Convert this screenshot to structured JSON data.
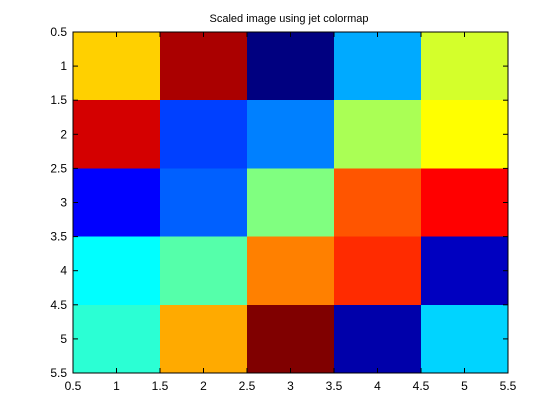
{
  "chart_data": {
    "type": "heatmap",
    "title": "Scaled image using jet colormap",
    "xlabel": "",
    "ylabel": "",
    "colormap": "jet",
    "xlim": [
      0.5,
      5.5
    ],
    "ylim": [
      0.5,
      5.5
    ],
    "y_axis_direction": "top-to-bottom",
    "grid": false,
    "x_tick_values": [
      0.5,
      1,
      1.5,
      2,
      2.5,
      3,
      3.5,
      4,
      4.5,
      5,
      5.5
    ],
    "x_tick_labels": [
      "0.5",
      "1",
      "1.5",
      "2",
      "2.5",
      "3",
      "3.5",
      "4",
      "4.5",
      "5",
      "5.5"
    ],
    "y_tick_values": [
      0.5,
      1,
      1.5,
      2,
      2.5,
      3,
      3.5,
      4,
      4.5,
      5,
      5.5
    ],
    "y_tick_labels": [
      "0.5",
      "1",
      "1.5",
      "2",
      "2.5",
      "3",
      "3.5",
      "4",
      "4.5",
      "5",
      "5.5"
    ],
    "columns": [
      1,
      2,
      3,
      4,
      5
    ],
    "rows": [
      1,
      2,
      3,
      4,
      5
    ],
    "cell_colors": [
      [
        "#ffd000",
        "#aa0000",
        "#000080",
        "#00aaff",
        "#d4ff2b"
      ],
      [
        "#d40000",
        "#0040ff",
        "#0080ff",
        "#aaff55",
        "#ffff00"
      ],
      [
        "#0000ff",
        "#0060ff",
        "#80ff80",
        "#ff5500",
        "#ff0000"
      ],
      [
        "#00ffff",
        "#55ffaa",
        "#ff8000",
        "#ff2b00",
        "#0000c0"
      ],
      [
        "#2bffd4",
        "#ffaa00",
        "#800000",
        "#0000aa",
        "#00d4ff"
      ]
    ]
  }
}
